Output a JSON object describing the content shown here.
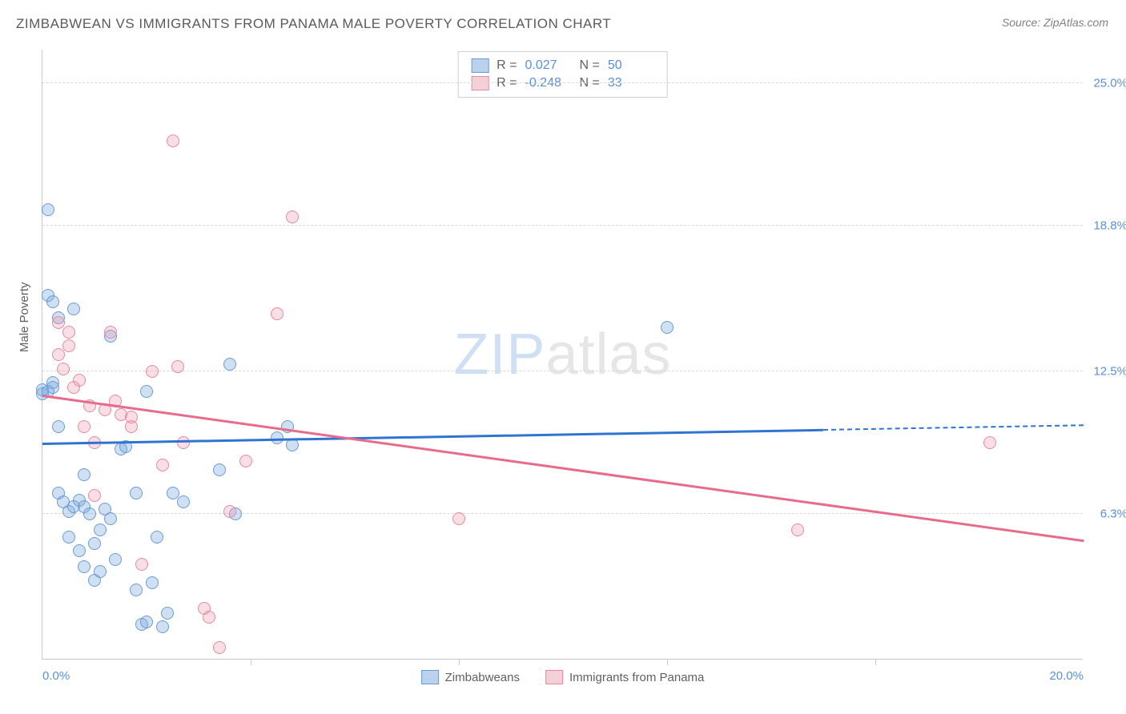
{
  "title": "ZIMBABWEAN VS IMMIGRANTS FROM PANAMA MALE POVERTY CORRELATION CHART",
  "source": "Source: ZipAtlas.com",
  "ylabel": "Male Poverty",
  "watermark_a": "ZIP",
  "watermark_b": "atlas",
  "chart": {
    "type": "scatter",
    "xlim": [
      0.0,
      20.0
    ],
    "ylim": [
      0.0,
      26.5
    ],
    "x_ticks": [
      0.0,
      20.0
    ],
    "x_tick_labels": [
      "0.0%",
      "20.0%"
    ],
    "x_minor_ticks": [
      4.0,
      8.0,
      12.0,
      16.0
    ],
    "y_gridlines": [
      6.3,
      12.5,
      18.8,
      25.0
    ],
    "y_tick_labels": [
      "6.3%",
      "12.5%",
      "18.8%",
      "25.0%"
    ],
    "background_color": "#ffffff",
    "grid_color": "#d9d9d9",
    "axis_color": "#c9c9c9",
    "label_color": "#5b8fd6",
    "marker_size": 16,
    "series": [
      {
        "name": "Zimbabweans",
        "fill": "rgba(120,165,220,0.35)",
        "stroke": "#6a9bd8",
        "trend_color": "#2f74d0",
        "R": "0.027",
        "N": "50",
        "trend": {
          "x1": 0.0,
          "y1": 9.3,
          "x2_solid": 15.0,
          "y2_solid": 9.9,
          "x2_dash": 20.0,
          "y2_dash": 10.1
        },
        "points": [
          [
            0.0,
            11.5
          ],
          [
            0.0,
            11.7
          ],
          [
            0.1,
            11.6
          ],
          [
            0.1,
            19.5
          ],
          [
            0.1,
            15.8
          ],
          [
            0.2,
            15.5
          ],
          [
            0.2,
            12.0
          ],
          [
            0.2,
            11.8
          ],
          [
            0.3,
            14.8
          ],
          [
            0.3,
            10.1
          ],
          [
            0.3,
            7.2
          ],
          [
            0.4,
            6.8
          ],
          [
            0.5,
            6.4
          ],
          [
            0.5,
            5.3
          ],
          [
            0.6,
            15.2
          ],
          [
            0.6,
            6.6
          ],
          [
            0.7,
            6.9
          ],
          [
            0.7,
            4.7
          ],
          [
            0.8,
            6.6
          ],
          [
            0.8,
            8.0
          ],
          [
            0.8,
            4.0
          ],
          [
            0.9,
            6.3
          ],
          [
            1.0,
            5.0
          ],
          [
            1.0,
            3.4
          ],
          [
            1.1,
            5.6
          ],
          [
            1.1,
            3.8
          ],
          [
            1.2,
            6.5
          ],
          [
            1.3,
            14.0
          ],
          [
            1.3,
            6.1
          ],
          [
            1.4,
            4.3
          ],
          [
            1.5,
            9.1
          ],
          [
            1.6,
            9.2
          ],
          [
            1.8,
            7.2
          ],
          [
            1.8,
            3.0
          ],
          [
            1.9,
            1.5
          ],
          [
            2.0,
            11.6
          ],
          [
            2.0,
            1.6
          ],
          [
            2.1,
            3.3
          ],
          [
            2.2,
            5.3
          ],
          [
            2.3,
            1.4
          ],
          [
            2.4,
            2.0
          ],
          [
            2.5,
            7.2
          ],
          [
            2.7,
            6.8
          ],
          [
            3.4,
            8.2
          ],
          [
            3.6,
            12.8
          ],
          [
            3.7,
            6.3
          ],
          [
            4.5,
            9.6
          ],
          [
            4.7,
            10.1
          ],
          [
            4.8,
            9.3
          ],
          [
            12.0,
            14.4
          ]
        ]
      },
      {
        "name": "Immigrants from Panama",
        "fill": "rgba(235,150,170,0.3)",
        "stroke": "#e58aa2",
        "trend_color": "#e76b8a",
        "R": "-0.248",
        "N": "33",
        "trend": {
          "x1": 0.0,
          "y1": 11.4,
          "x2_solid": 20.0,
          "y2_solid": 5.1,
          "x2_dash": 20.0,
          "y2_dash": 5.1
        },
        "points": [
          [
            0.3,
            14.6
          ],
          [
            0.3,
            13.2
          ],
          [
            0.4,
            12.6
          ],
          [
            0.5,
            14.2
          ],
          [
            0.5,
            13.6
          ],
          [
            0.6,
            11.8
          ],
          [
            0.7,
            12.1
          ],
          [
            0.8,
            10.1
          ],
          [
            0.9,
            11.0
          ],
          [
            1.0,
            9.4
          ],
          [
            1.0,
            7.1
          ],
          [
            1.2,
            10.8
          ],
          [
            1.3,
            14.2
          ],
          [
            1.4,
            11.2
          ],
          [
            1.5,
            10.6
          ],
          [
            1.7,
            10.5
          ],
          [
            1.7,
            10.1
          ],
          [
            1.9,
            4.1
          ],
          [
            2.1,
            12.5
          ],
          [
            2.3,
            8.4
          ],
          [
            2.5,
            22.5
          ],
          [
            2.6,
            12.7
          ],
          [
            2.7,
            9.4
          ],
          [
            3.1,
            2.2
          ],
          [
            3.2,
            1.8
          ],
          [
            3.4,
            0.5
          ],
          [
            3.6,
            6.4
          ],
          [
            3.9,
            8.6
          ],
          [
            4.5,
            15.0
          ],
          [
            4.8,
            19.2
          ],
          [
            8.0,
            6.1
          ],
          [
            14.5,
            5.6
          ],
          [
            18.2,
            9.4
          ]
        ]
      }
    ]
  },
  "stats_labels": {
    "R": "R =",
    "N": "N ="
  },
  "legend": {
    "series_a": "Zimbabweans",
    "series_b": "Immigrants from Panama"
  }
}
